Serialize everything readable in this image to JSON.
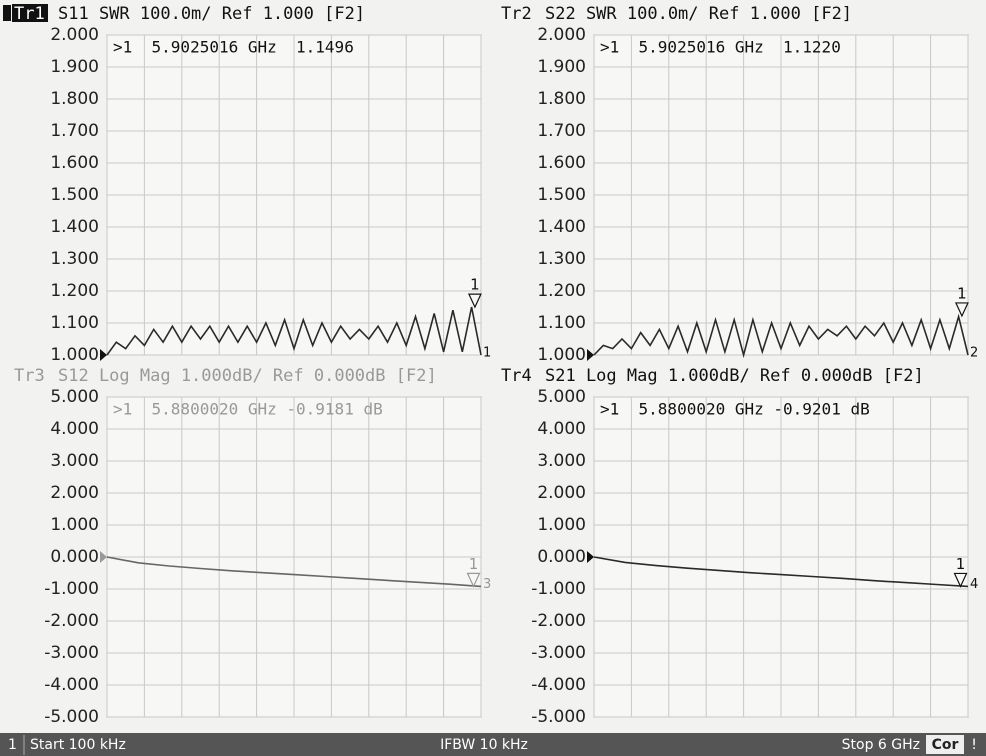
{
  "chart_data": [
    {
      "type": "line",
      "trace": "Tr1",
      "header": "S11 SWR 100.0m/ Ref 1.000 [F2]",
      "active": true,
      "readout": ">1  5.9025016 GHz  1.1496",
      "marker": {
        "label": "1",
        "x": 5.9025016,
        "value": 1.1496
      },
      "trace_number": "1",
      "ref_value": 1,
      "color": "#2a2a2a",
      "text_color": "#111",
      "xlim": [
        0.0001,
        6
      ],
      "xticks": [
        0.0001,
        0.6,
        1.2,
        1.8,
        2.4,
        3,
        3.6,
        4.2,
        4.8,
        5.4,
        6
      ],
      "ylim": [
        1,
        2
      ],
      "yticks": [
        {
          "value": 2,
          "label": "2.000"
        },
        {
          "value": 1.9,
          "label": "1.900"
        },
        {
          "value": 1.8,
          "label": "1.800"
        },
        {
          "value": 1.7,
          "label": "1.700"
        },
        {
          "value": 1.6,
          "label": "1.600"
        },
        {
          "value": 1.5,
          "label": "1.500"
        },
        {
          "value": 1.4,
          "label": "1.400"
        },
        {
          "value": 1.3,
          "label": "1.300"
        },
        {
          "value": 1.2,
          "label": "1.200"
        },
        {
          "value": 1.1,
          "label": "1.100"
        },
        {
          "value": 1,
          "label": "1.000"
        }
      ],
      "grid": true,
      "x": [
        0.0001,
        0.15,
        0.3,
        0.45,
        0.6,
        0.75,
        0.9,
        1.05,
        1.2,
        1.35,
        1.5,
        1.65,
        1.8,
        1.95,
        2.1,
        2.25,
        2.4,
        2.55,
        2.7,
        2.85,
        3,
        3.15,
        3.3,
        3.45,
        3.6,
        3.75,
        3.9,
        4.05,
        4.2,
        4.35,
        4.5,
        4.65,
        4.8,
        4.95,
        5.1,
        5.25,
        5.4,
        5.55,
        5.7,
        5.85,
        6
      ],
      "values": [
        1.0,
        1.04,
        1.02,
        1.06,
        1.03,
        1.08,
        1.04,
        1.09,
        1.04,
        1.09,
        1.05,
        1.09,
        1.04,
        1.09,
        1.04,
        1.09,
        1.04,
        1.1,
        1.03,
        1.11,
        1.02,
        1.11,
        1.03,
        1.1,
        1.04,
        1.09,
        1.05,
        1.08,
        1.05,
        1.09,
        1.04,
        1.1,
        1.03,
        1.12,
        1.02,
        1.13,
        1.01,
        1.14,
        1.01,
        1.15,
        1.0
      ]
    },
    {
      "type": "line",
      "trace": "Tr2",
      "header": "S22 SWR 100.0m/ Ref 1.000 [F2]",
      "active": false,
      "readout": ">1  5.9025016 GHz  1.1220",
      "marker": {
        "label": "1",
        "x": 5.9025016,
        "value": 1.122
      },
      "trace_number": "2",
      "ref_value": 1,
      "color": "#2a2a2a",
      "text_color": "#111",
      "xlim": [
        0.0001,
        6
      ],
      "xticks": [
        0.0001,
        0.6,
        1.2,
        1.8,
        2.4,
        3,
        3.6,
        4.2,
        4.8,
        5.4,
        6
      ],
      "ylim": [
        1,
        2
      ],
      "yticks": [
        {
          "value": 2,
          "label": "2.000"
        },
        {
          "value": 1.9,
          "label": "1.900"
        },
        {
          "value": 1.8,
          "label": "1.800"
        },
        {
          "value": 1.7,
          "label": "1.700"
        },
        {
          "value": 1.6,
          "label": "1.600"
        },
        {
          "value": 1.5,
          "label": "1.500"
        },
        {
          "value": 1.4,
          "label": "1.400"
        },
        {
          "value": 1.3,
          "label": "1.300"
        },
        {
          "value": 1.2,
          "label": "1.200"
        },
        {
          "value": 1.1,
          "label": "1.100"
        },
        {
          "value": 1,
          "label": "1.000"
        }
      ],
      "grid": true,
      "x": [
        0.0001,
        0.15,
        0.3,
        0.45,
        0.6,
        0.75,
        0.9,
        1.05,
        1.2,
        1.35,
        1.5,
        1.65,
        1.8,
        1.95,
        2.1,
        2.25,
        2.4,
        2.55,
        2.7,
        2.85,
        3,
        3.15,
        3.3,
        3.45,
        3.6,
        3.75,
        3.9,
        4.05,
        4.2,
        4.35,
        4.5,
        4.65,
        4.8,
        4.95,
        5.1,
        5.25,
        5.4,
        5.55,
        5.7,
        5.85,
        6
      ],
      "values": [
        1.0,
        1.03,
        1.02,
        1.05,
        1.02,
        1.07,
        1.03,
        1.08,
        1.02,
        1.09,
        1.01,
        1.1,
        1.01,
        1.11,
        1.01,
        1.11,
        1.0,
        1.11,
        1.01,
        1.1,
        1.02,
        1.1,
        1.03,
        1.09,
        1.05,
        1.08,
        1.06,
        1.09,
        1.05,
        1.09,
        1.06,
        1.1,
        1.04,
        1.1,
        1.03,
        1.11,
        1.02,
        1.11,
        1.02,
        1.12,
        1.0
      ]
    },
    {
      "type": "line",
      "trace": "Tr3",
      "header": "S12 Log Mag 1.000dB/ Ref 0.000dB [F2]",
      "active": false,
      "readout": ">1  5.8800020 GHz -0.9181 dB",
      "marker": {
        "label": "1",
        "x": 5.880002,
        "value": -0.9181
      },
      "trace_number": "3",
      "ref_value": 0,
      "color": "#666",
      "text_color": "#999",
      "xlim": [
        0.0001,
        6
      ],
      "xticks": [
        0.0001,
        0.6,
        1.2,
        1.8,
        2.4,
        3,
        3.6,
        4.2,
        4.8,
        5.4,
        6
      ],
      "ylim": [
        -5,
        5
      ],
      "yticks": [
        {
          "value": 5,
          "label": "5.000"
        },
        {
          "value": 4,
          "label": "4.000"
        },
        {
          "value": 3,
          "label": "3.000"
        },
        {
          "value": 2,
          "label": "2.000"
        },
        {
          "value": 1,
          "label": "1.000"
        },
        {
          "value": 0,
          "label": "0.000"
        },
        {
          "value": -1,
          "label": "-1.000"
        },
        {
          "value": -2,
          "label": "-2.000"
        },
        {
          "value": -3,
          "label": "-3.000"
        },
        {
          "value": -4,
          "label": "-4.000"
        },
        {
          "value": -5,
          "label": "-5.000"
        }
      ],
      "grid": true,
      "x": [
        0.0001,
        0.5,
        1,
        1.5,
        2,
        2.5,
        3,
        3.5,
        4,
        4.5,
        5,
        5.5,
        6
      ],
      "values": [
        0,
        -0.18,
        -0.28,
        -0.36,
        -0.43,
        -0.49,
        -0.55,
        -0.61,
        -0.67,
        -0.73,
        -0.79,
        -0.85,
        -0.92
      ]
    },
    {
      "type": "line",
      "trace": "Tr4",
      "header": "S21 Log Mag 1.000dB/ Ref 0.000dB [F2]",
      "active": false,
      "readout": ">1  5.8800020 GHz -0.9201 dB",
      "marker": {
        "label": "1",
        "x": 5.880002,
        "value": -0.9201
      },
      "trace_number": "4",
      "ref_value": 0,
      "color": "#2a2a2a",
      "text_color": "#111",
      "xlim": [
        0.0001,
        6
      ],
      "xticks": [
        0.0001,
        0.6,
        1.2,
        1.8,
        2.4,
        3,
        3.6,
        4.2,
        4.8,
        5.4,
        6
      ],
      "ylim": [
        -5,
        5
      ],
      "yticks": [
        {
          "value": 5,
          "label": "5.000"
        },
        {
          "value": 4,
          "label": "4.000"
        },
        {
          "value": 3,
          "label": "3.000"
        },
        {
          "value": 2,
          "label": "2.000"
        },
        {
          "value": 1,
          "label": "1.000"
        },
        {
          "value": 0,
          "label": "0.000"
        },
        {
          "value": -1,
          "label": "-1.000"
        },
        {
          "value": -2,
          "label": "-2.000"
        },
        {
          "value": -3,
          "label": "-3.000"
        },
        {
          "value": -4,
          "label": "-4.000"
        },
        {
          "value": -5,
          "label": "-5.000"
        }
      ],
      "grid": true,
      "x": [
        0.0001,
        0.5,
        1,
        1.5,
        2,
        2.5,
        3,
        3.5,
        4,
        4.5,
        5,
        5.5,
        6
      ],
      "values": [
        0,
        -0.17,
        -0.27,
        -0.35,
        -0.42,
        -0.49,
        -0.55,
        -0.61,
        -0.67,
        -0.74,
        -0.8,
        -0.86,
        -0.92
      ]
    }
  ],
  "status_bar": {
    "channel": "1",
    "start": "Start 100 kHz",
    "ifbw": "IFBW 10 kHz",
    "stop": "Stop 6 GHz",
    "correction": "Cor",
    "alert": "!"
  }
}
